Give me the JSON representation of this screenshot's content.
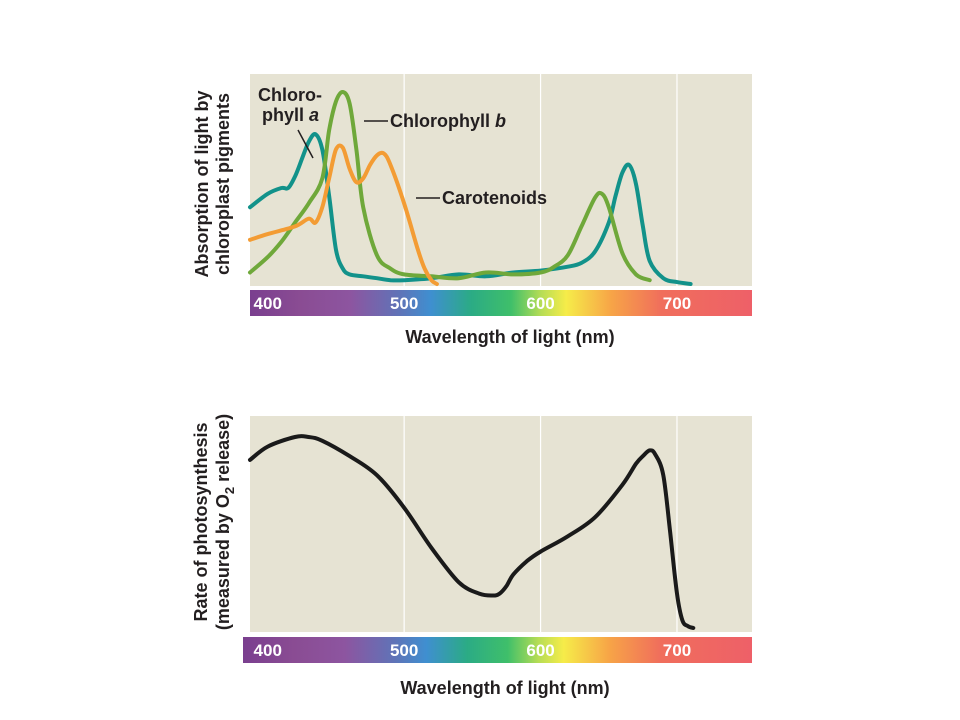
{
  "chart_data": [
    {
      "type": "line",
      "xlabel": "Wavelength of light (nm)",
      "ylabel_line1": "Absorption of light by",
      "ylabel_line2": "chloroplast pigments",
      "xlim": [
        387,
        755
      ],
      "ylim": [
        0,
        1
      ],
      "x_ticks": [
        400,
        500,
        600,
        700
      ],
      "grid": "vertical lines at 500, 600, 700",
      "background": "#e6e3d3",
      "annotations": {
        "chl_a_line1": "Chloro-",
        "chl_a_line2": "phyll ",
        "chl_a_italic": "a",
        "chl_b_text": "Chlorophyll ",
        "chl_b_italic": "b",
        "carotenoids": "Carotenoids"
      },
      "series": [
        {
          "name": "Chlorophyll a",
          "color": "#12928a",
          "x": [
            387,
            400,
            410,
            415,
            420,
            425,
            430,
            435,
            440,
            445,
            450,
            455,
            460,
            470,
            480,
            490,
            500,
            520,
            540,
            560,
            580,
            600,
            620,
            630,
            640,
            650,
            655,
            660,
            665,
            670,
            675,
            680,
            690,
            700,
            710
          ],
          "y": [
            0.4,
            0.47,
            0.5,
            0.5,
            0.56,
            0.65,
            0.74,
            0.78,
            0.7,
            0.46,
            0.18,
            0.08,
            0.05,
            0.04,
            0.03,
            0.02,
            0.02,
            0.03,
            0.05,
            0.04,
            0.06,
            0.07,
            0.09,
            0.11,
            0.17,
            0.32,
            0.46,
            0.58,
            0.62,
            0.52,
            0.3,
            0.12,
            0.03,
            0.01,
            0.0
          ]
        },
        {
          "name": "Chlorophyll b",
          "color": "#6fa83a",
          "x": [
            387,
            400,
            410,
            420,
            430,
            440,
            445,
            450,
            455,
            460,
            465,
            470,
            480,
            490,
            500,
            520,
            540,
            560,
            580,
            600,
            610,
            620,
            630,
            640,
            645,
            650,
            660,
            670,
            680
          ],
          "y": [
            0.06,
            0.14,
            0.22,
            0.32,
            0.42,
            0.55,
            0.8,
            0.95,
            1.0,
            0.94,
            0.7,
            0.4,
            0.15,
            0.08,
            0.05,
            0.04,
            0.03,
            0.06,
            0.05,
            0.06,
            0.09,
            0.15,
            0.3,
            0.45,
            0.47,
            0.4,
            0.16,
            0.05,
            0.02
          ]
        },
        {
          "name": "Carotenoids",
          "color": "#f39c34",
          "x": [
            387,
            400,
            420,
            430,
            435,
            440,
            445,
            450,
            455,
            460,
            465,
            470,
            475,
            480,
            485,
            490,
            500,
            510,
            515,
            520,
            524
          ],
          "y": [
            0.23,
            0.26,
            0.3,
            0.34,
            0.32,
            0.4,
            0.55,
            0.7,
            0.71,
            0.6,
            0.53,
            0.55,
            0.62,
            0.67,
            0.68,
            0.62,
            0.42,
            0.18,
            0.08,
            0.02,
            0.0
          ]
        }
      ]
    },
    {
      "type": "line",
      "xlabel": "Wavelength of light (nm)",
      "ylabel_line1": "Rate of photosynthesis",
      "ylabel_line2a": "(measured by O",
      "ylabel_sub": "2",
      "ylabel_line2b": " release)",
      "xlim": [
        387,
        755
      ],
      "ylim": [
        0,
        1
      ],
      "x_ticks": [
        400,
        500,
        600,
        700
      ],
      "grid": "vertical lines at 500, 600, 700",
      "background": "#e6e3d3",
      "series": [
        {
          "name": "Rate of photosynthesis",
          "color": "#1a1a1a",
          "x": [
            387,
            400,
            420,
            430,
            440,
            460,
            480,
            500,
            520,
            540,
            555,
            565,
            570,
            575,
            580,
            590,
            600,
            620,
            640,
            660,
            670,
            675,
            680,
            684,
            690,
            695,
            700,
            704,
            708,
            712
          ],
          "y": [
            0.88,
            0.95,
            1.0,
            1.0,
            0.98,
            0.9,
            0.8,
            0.63,
            0.42,
            0.24,
            0.18,
            0.17,
            0.18,
            0.22,
            0.28,
            0.35,
            0.4,
            0.48,
            0.58,
            0.75,
            0.86,
            0.9,
            0.93,
            0.91,
            0.8,
            0.5,
            0.18,
            0.04,
            0.01,
            0.0
          ]
        }
      ]
    }
  ]
}
